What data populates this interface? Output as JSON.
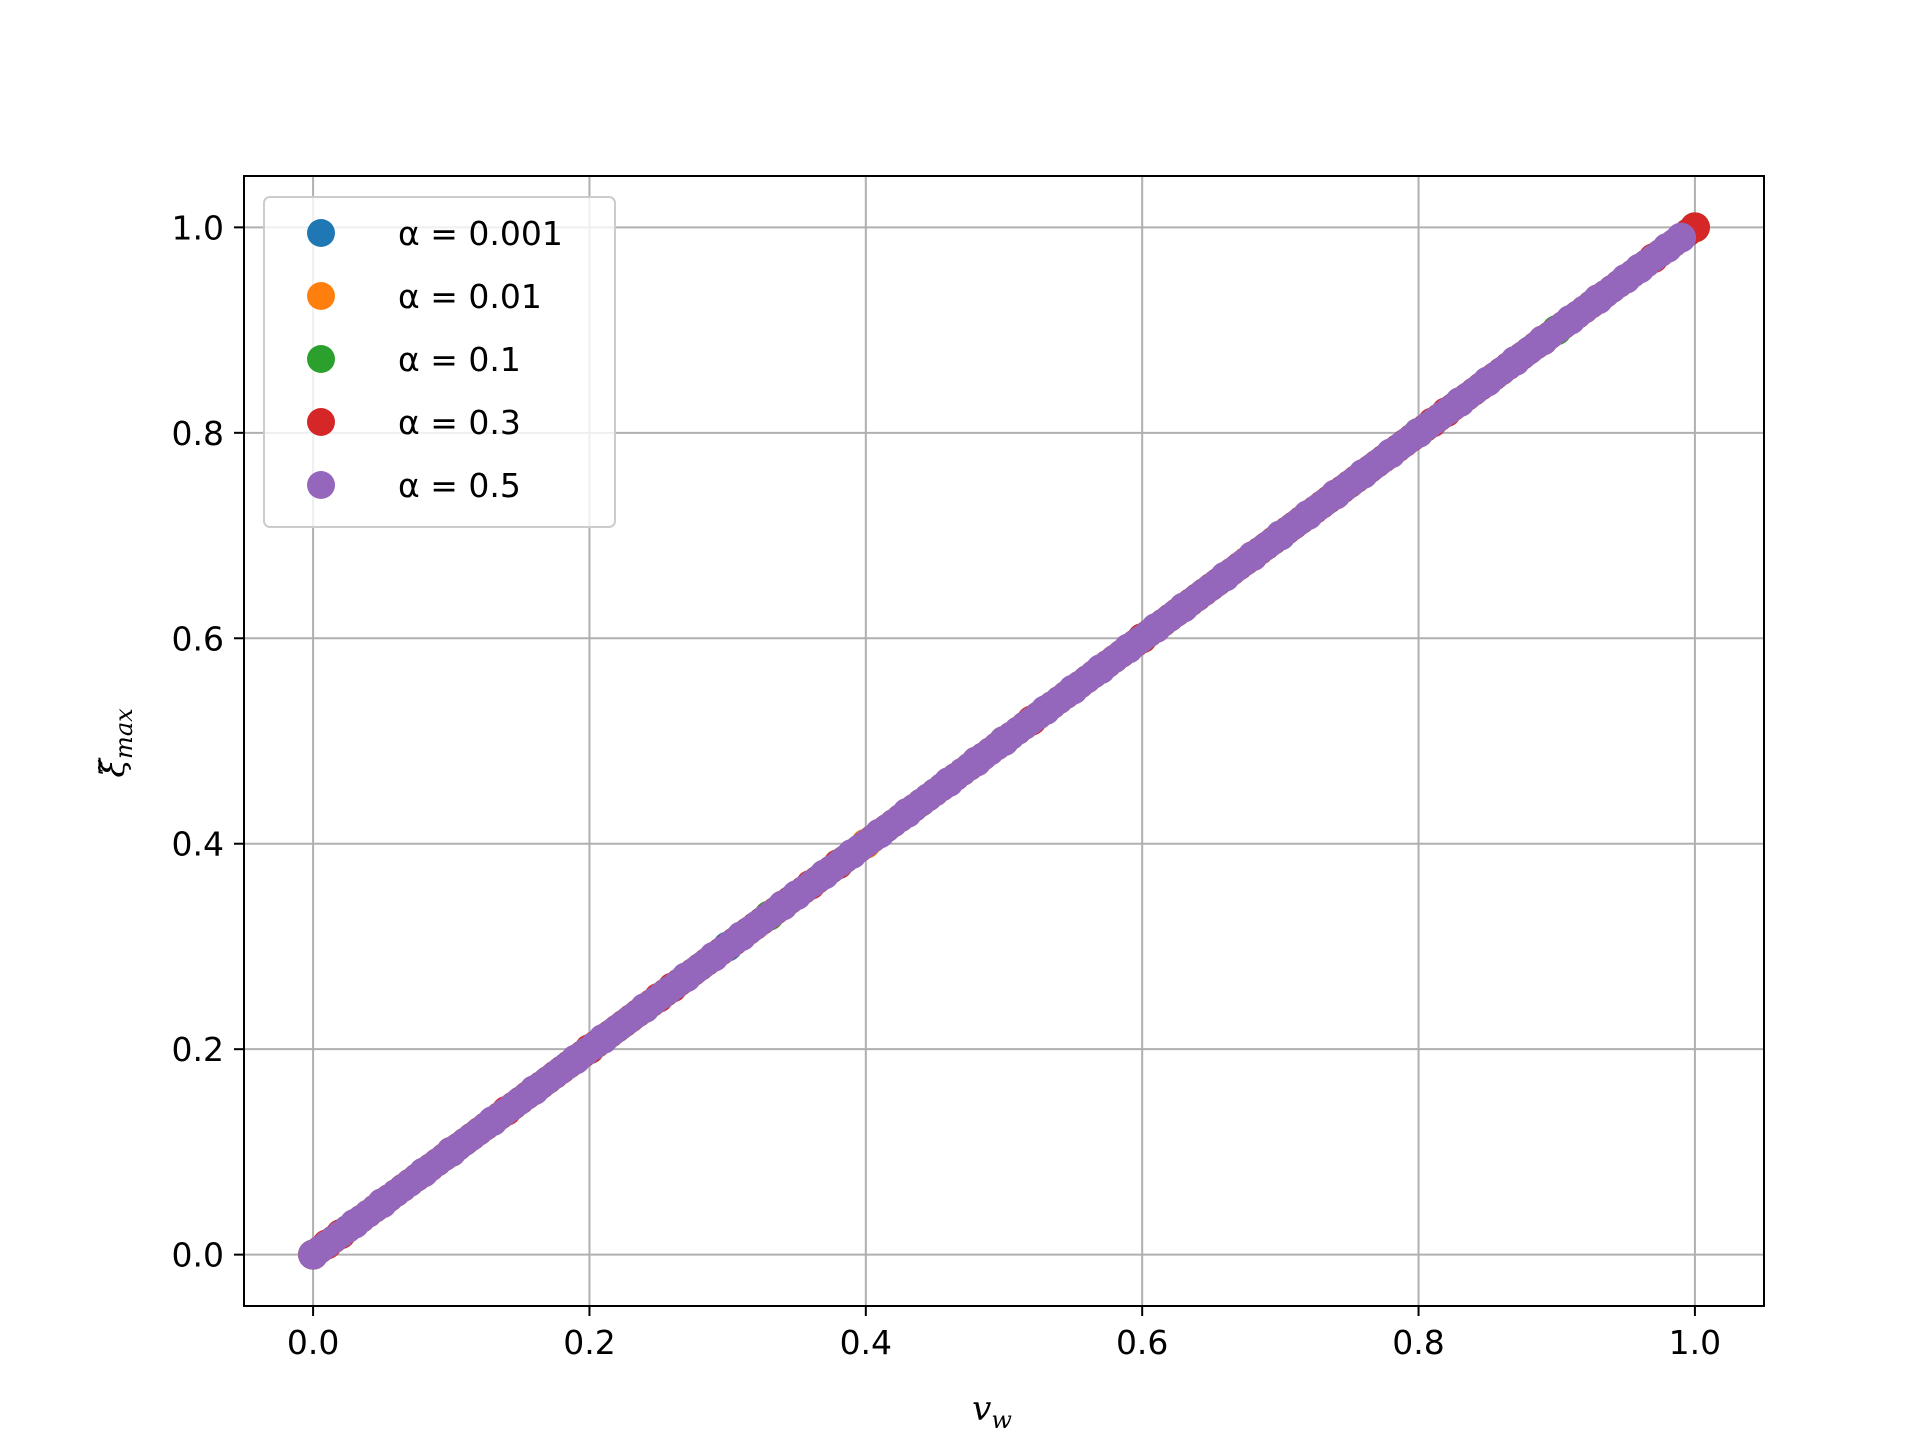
{
  "chart_data": {
    "type": "scatter",
    "title": "",
    "xlabel": "v",
    "xlabel_sub": "w",
    "ylabel": "ξ̃",
    "ylabel_sub": "max",
    "xlim": [
      -0.05,
      1.05
    ],
    "ylim": [
      -0.05,
      1.05
    ],
    "xticks": [
      "0.0",
      "0.2",
      "0.4",
      "0.6",
      "0.8",
      "1.0"
    ],
    "yticks": [
      "0.0",
      "0.2",
      "0.4",
      "0.6",
      "0.8",
      "1.0"
    ],
    "grid": true,
    "legend_position": "top-left",
    "series": [
      {
        "name": "α = 0.001",
        "color": "#1f77b4",
        "x": [
          0.0,
          0.1,
          0.2,
          0.3,
          0.4,
          0.5,
          0.6,
          0.7,
          0.8,
          0.9,
          1.0
        ],
        "y": [
          0.0,
          0.1,
          0.2,
          0.3,
          0.4,
          0.5,
          0.6,
          0.7,
          0.8,
          0.9,
          1.0
        ]
      },
      {
        "name": "α = 0.01",
        "color": "#ff7f0e",
        "x": [
          0.0,
          0.1,
          0.2,
          0.33,
          0.4,
          0.5,
          0.6,
          0.74,
          0.8,
          0.89,
          1.0
        ],
        "y": [
          0.0,
          0.1,
          0.2,
          0.33,
          0.4,
          0.5,
          0.6,
          0.74,
          0.8,
          0.89,
          1.0
        ]
      },
      {
        "name": "α = 0.1",
        "color": "#2ca02c",
        "x": [
          0.0,
          0.02,
          0.1,
          0.2,
          0.33,
          0.38,
          0.5,
          0.6,
          0.7,
          0.8,
          0.9,
          1.0
        ],
        "y": [
          0.0,
          0.02,
          0.1,
          0.2,
          0.33,
          0.38,
          0.5,
          0.6,
          0.7,
          0.8,
          0.9,
          1.0
        ]
      },
      {
        "name": "α = 0.3",
        "color": "#d62728",
        "x": [
          0.0,
          0.01,
          0.02,
          0.05,
          0.1,
          0.14,
          0.2,
          0.25,
          0.26,
          0.34,
          0.36,
          0.38,
          0.48,
          0.52,
          0.6,
          0.68,
          0.74,
          0.81,
          0.82,
          0.89,
          0.93,
          0.97,
          1.0
        ],
        "y": [
          0.0,
          0.01,
          0.02,
          0.05,
          0.1,
          0.14,
          0.2,
          0.25,
          0.26,
          0.34,
          0.36,
          0.38,
          0.48,
          0.52,
          0.6,
          0.68,
          0.74,
          0.81,
          0.82,
          0.89,
          0.93,
          0.97,
          1.0
        ]
      },
      {
        "name": "α = 0.5",
        "color": "#9467bd",
        "x": [
          0.0,
          0.03,
          0.05,
          0.08,
          0.1,
          0.13,
          0.16,
          0.19,
          0.21,
          0.24,
          0.27,
          0.29,
          0.31,
          0.34,
          0.35,
          0.37,
          0.39,
          0.41,
          0.43,
          0.46,
          0.48,
          0.5,
          0.53,
          0.55,
          0.57,
          0.59,
          0.61,
          0.63,
          0.66,
          0.68,
          0.7,
          0.72,
          0.74,
          0.76,
          0.78,
          0.8,
          0.83,
          0.85,
          0.87,
          0.89,
          0.91,
          0.93,
          0.95,
          0.96,
          0.98,
          0.99
        ],
        "y": [
          0.0,
          0.03,
          0.05,
          0.08,
          0.1,
          0.13,
          0.16,
          0.19,
          0.21,
          0.24,
          0.27,
          0.29,
          0.31,
          0.34,
          0.35,
          0.37,
          0.39,
          0.41,
          0.43,
          0.46,
          0.48,
          0.5,
          0.53,
          0.55,
          0.57,
          0.59,
          0.61,
          0.63,
          0.66,
          0.68,
          0.7,
          0.72,
          0.74,
          0.76,
          0.78,
          0.8,
          0.83,
          0.85,
          0.87,
          0.89,
          0.91,
          0.93,
          0.95,
          0.96,
          0.98,
          0.99
        ]
      }
    ]
  }
}
